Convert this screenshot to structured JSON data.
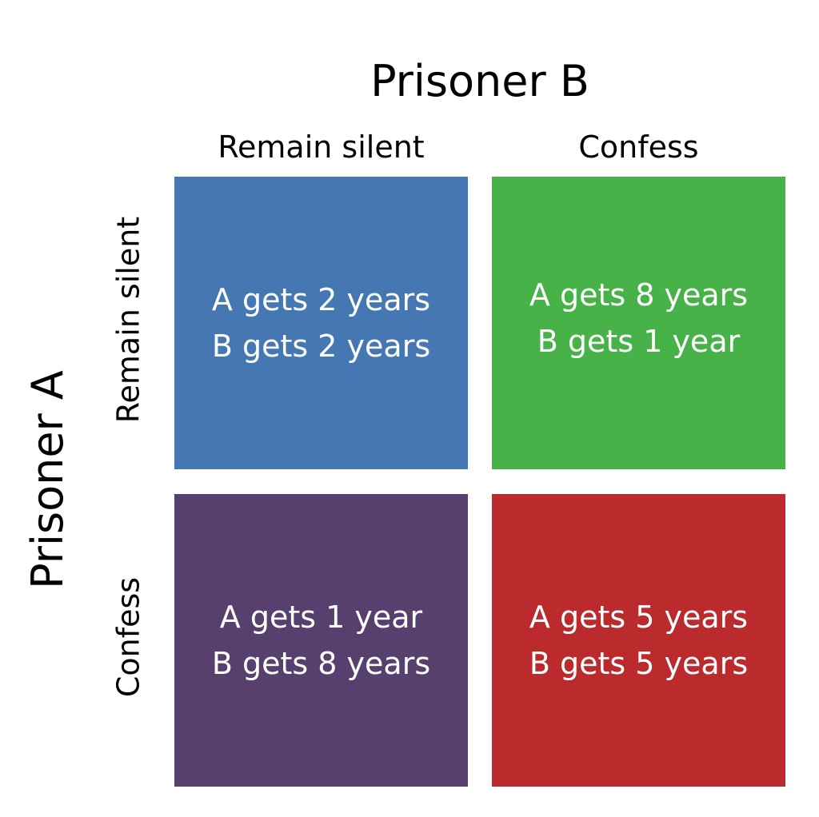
{
  "title_b": "Prisoner B",
  "title_a": "Prisoner A",
  "cols": [
    "Remain silent",
    "Confess"
  ],
  "rows": [
    "Remain silent",
    "Confess"
  ],
  "cells": [
    {
      "lines": [
        "A gets 2 years",
        "B gets 2 years"
      ],
      "color": "#4577b3"
    },
    {
      "lines": [
        "A gets 8 years",
        "B gets 1 year"
      ],
      "color": "#47b247"
    },
    {
      "lines": [
        "A gets 1 year",
        "B gets 8 years"
      ],
      "color": "#573f6e"
    },
    {
      "lines": [
        "A gets 5 years",
        "B gets 5 years"
      ],
      "color": "#bb2b2d"
    }
  ]
}
